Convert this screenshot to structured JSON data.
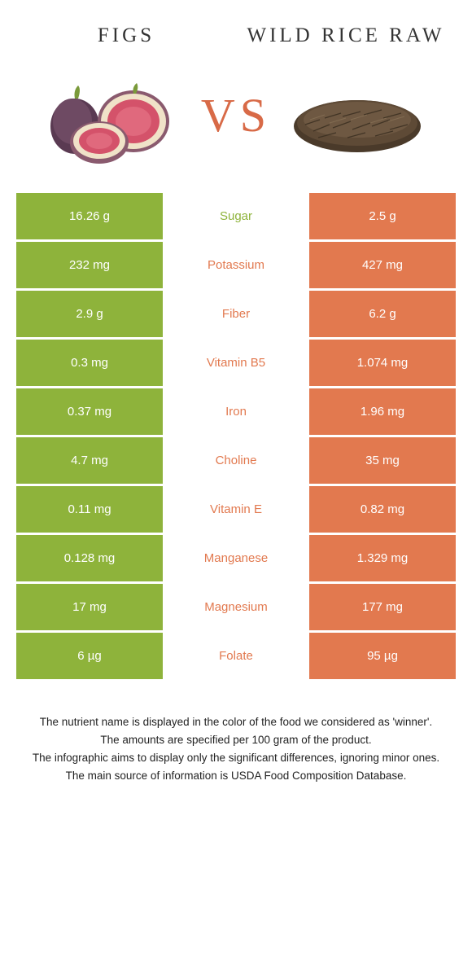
{
  "header": {
    "left_title": "FIGS",
    "right_title": "WILD RICE RAW",
    "vs": "VS"
  },
  "colors": {
    "left_bar": "#8eb33b",
    "right_bar": "#e2794f",
    "mid_left": "#8eb33b",
    "mid_right": "#e2794f",
    "vs_text": "#d86a47"
  },
  "table": {
    "rows": [
      {
        "left": "16.26 g",
        "nutrient": "Sugar",
        "right": "2.5 g",
        "winner": "left"
      },
      {
        "left": "232 mg",
        "nutrient": "Potassium",
        "right": "427 mg",
        "winner": "right"
      },
      {
        "left": "2.9 g",
        "nutrient": "Fiber",
        "right": "6.2 g",
        "winner": "right"
      },
      {
        "left": "0.3 mg",
        "nutrient": "Vitamin B5",
        "right": "1.074 mg",
        "winner": "right"
      },
      {
        "left": "0.37 mg",
        "nutrient": "Iron",
        "right": "1.96 mg",
        "winner": "right"
      },
      {
        "left": "4.7 mg",
        "nutrient": "Choline",
        "right": "35 mg",
        "winner": "right"
      },
      {
        "left": "0.11 mg",
        "nutrient": "Vitamin E",
        "right": "0.82 mg",
        "winner": "right"
      },
      {
        "left": "0.128 mg",
        "nutrient": "Manganese",
        "right": "1.329 mg",
        "winner": "right"
      },
      {
        "left": "17 mg",
        "nutrient": "Magnesium",
        "right": "177 mg",
        "winner": "right"
      },
      {
        "left": "6 µg",
        "nutrient": "Folate",
        "right": "95 µg",
        "winner": "right"
      }
    ]
  },
  "footer": {
    "line1": "The nutrient name is displayed in the color of the food we considered as 'winner'.",
    "line2": "The amounts are specified per 100 gram of the product.",
    "line3": "The infographic aims to display only the significant differences, ignoring minor ones.",
    "line4": "The main source of information is USDA Food Composition Database."
  }
}
